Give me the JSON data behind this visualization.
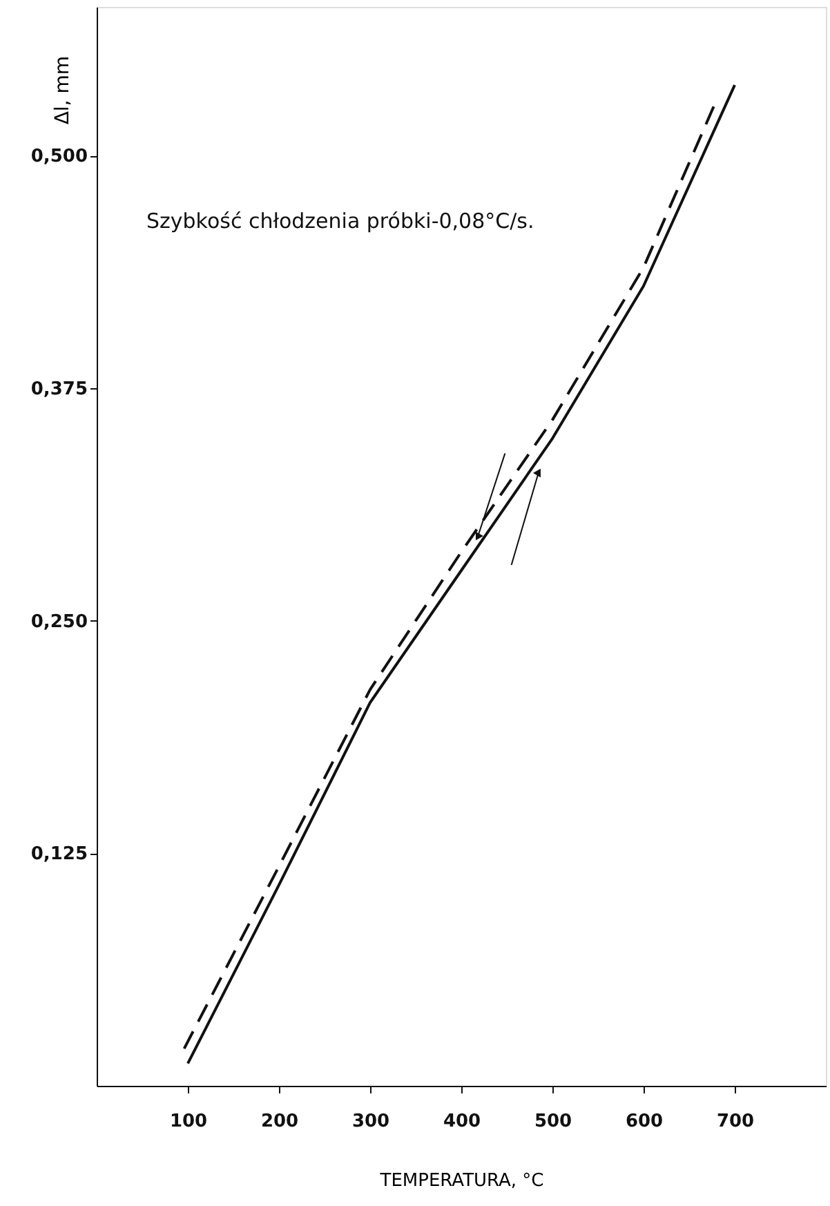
{
  "chart_data": {
    "type": "line",
    "xlabel": "TEMPERATURA, °C",
    "ylabel": "Δl, mm",
    "annotations": [
      "Szybkość chłodzenia próbki-0,08°C/s."
    ],
    "xlim": [
      0,
      800
    ],
    "xticks": [
      100,
      200,
      300,
      400,
      500,
      600,
      700
    ],
    "ylim": [
      0,
      0.58
    ],
    "yticks": [
      {
        "value": 0.125,
        "label": "0,125"
      },
      {
        "value": 0.25,
        "label": "0,250"
      },
      {
        "value": 0.375,
        "label": "0,375"
      },
      {
        "value": 0.5,
        "label": "0,500"
      }
    ],
    "grid": false,
    "marker": "none",
    "series": [
      {
        "color": "#111111",
        "line_style": "solid",
        "x": [
          100,
          200,
          300,
          400,
          500,
          600,
          700
        ],
        "values": [
          0.012,
          0.108,
          0.206,
          0.277,
          0.348,
          0.43,
          0.538
        ]
      },
      {
        "color": "#111111",
        "line_style": "dashed",
        "x": [
          96,
          200,
          300,
          400,
          500,
          600,
          681
        ],
        "values": [
          0.02,
          0.118,
          0.213,
          0.287,
          0.358,
          0.44,
          0.531
        ]
      }
    ]
  }
}
